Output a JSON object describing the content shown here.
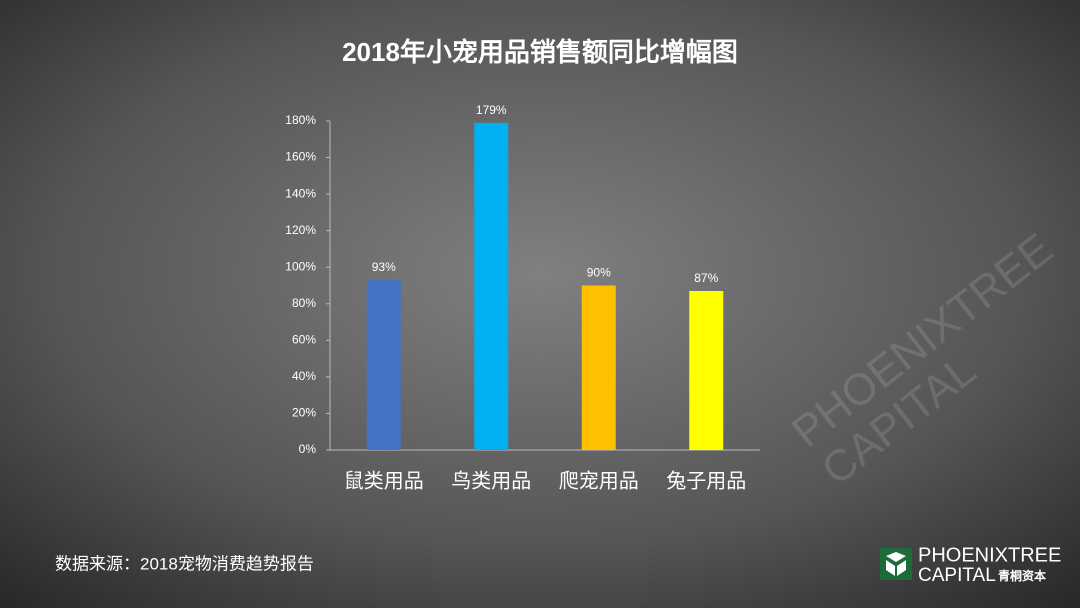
{
  "chart_data": {
    "type": "bar",
    "title": "2018年小宠用品销售额同比增幅图",
    "categories": [
      "鼠类用品",
      "鸟类用品",
      "爬宠用品",
      "兔子用品"
    ],
    "values": [
      93,
      179,
      90,
      87
    ],
    "value_labels": [
      "93%",
      "179%",
      "90%",
      "87%"
    ],
    "colors": [
      "#4472c4",
      "#00b0f0",
      "#ffc000",
      "#ffff00"
    ],
    "ylim": [
      0,
      180
    ],
    "yticks": [
      {
        "value": 0,
        "label": "0%"
      },
      {
        "value": 20,
        "label": "20%"
      },
      {
        "value": 40,
        "label": "40%"
      },
      {
        "value": 60,
        "label": "60%"
      },
      {
        "value": 80,
        "label": "80%"
      },
      {
        "value": 100,
        "label": "100%"
      },
      {
        "value": 120,
        "label": "120%"
      },
      {
        "value": 140,
        "label": "140%"
      },
      {
        "value": 160,
        "label": "160%"
      },
      {
        "value": 180,
        "label": "180%"
      }
    ]
  },
  "source": "数据来源：2018宠物消费趋势报告",
  "logo": {
    "line1": "PHOENIXTREE",
    "line2": "CAPITAL",
    "cn": "青桐资本"
  }
}
